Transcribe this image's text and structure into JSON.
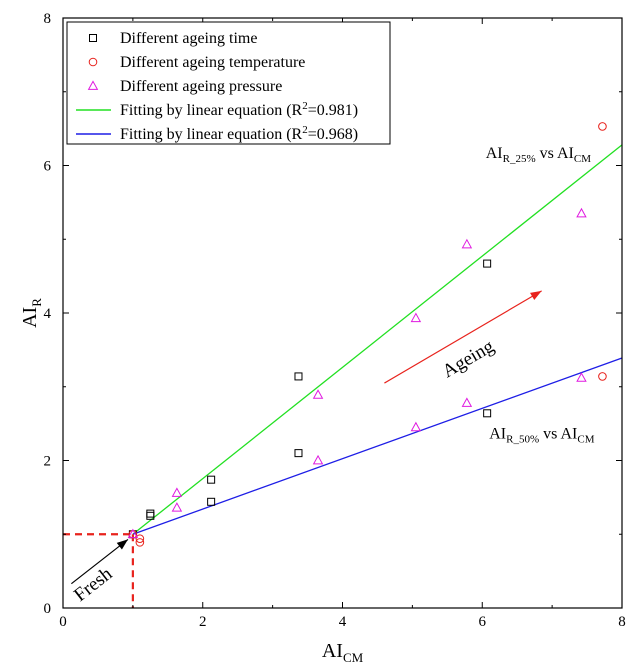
{
  "chart_data": {
    "type": "scatter",
    "xlabel": {
      "main": "AI",
      "sub": "CM"
    },
    "ylabel": {
      "main": "AI",
      "sub": "R"
    },
    "xlim": [
      0,
      8
    ],
    "ylim": [
      0,
      8
    ],
    "x_ticks": [
      "0",
      "2",
      "4",
      "6",
      "8"
    ],
    "y_ticks": [
      "0",
      "2",
      "4",
      "6",
      "8"
    ],
    "grid": false,
    "legend": {
      "placement": "top-left",
      "entries": [
        {
          "label": "Different ageing time",
          "marker": "square",
          "color": "#000000"
        },
        {
          "label": "Different ageing temperature",
          "marker": "circle",
          "color": "#e8231d"
        },
        {
          "label": "Different ageing pressure",
          "marker": "triangle",
          "color": "#e01ae0"
        },
        {
          "label_pre": "Fitting by linear equation (R",
          "label_sup": "2",
          "label_post": "=0.981)",
          "line": true,
          "color": "#22e022"
        },
        {
          "label_pre": "Fitting by linear equation (R",
          "label_sup": "2",
          "label_post": "=0.968)",
          "line": true,
          "color": "#1e1ee6"
        }
      ]
    },
    "series": [
      {
        "marker": "square",
        "color": "#000000",
        "points": [
          [
            1,
            1
          ],
          [
            1.25,
            1.28
          ],
          [
            1.25,
            1.25
          ],
          [
            2.12,
            1.74
          ],
          [
            2.12,
            1.44
          ],
          [
            3.37,
            3.14
          ],
          [
            3.37,
            2.1
          ],
          [
            6.07,
            4.67
          ],
          [
            6.07,
            2.64
          ]
        ]
      },
      {
        "marker": "circle",
        "color": "#e8231d",
        "points": [
          [
            1,
            1
          ],
          [
            1.1,
            0.94
          ],
          [
            1.1,
            0.89
          ],
          [
            7.72,
            6.53
          ],
          [
            7.72,
            3.14
          ]
        ]
      },
      {
        "marker": "triangle",
        "color": "#e01ae0",
        "points": [
          [
            1,
            1
          ],
          [
            1.63,
            1.56
          ],
          [
            1.63,
            1.36
          ],
          [
            3.65,
            2.89
          ],
          [
            3.65,
            2.0
          ],
          [
            5.05,
            3.93
          ],
          [
            5.05,
            2.45
          ],
          [
            5.78,
            4.93
          ],
          [
            5.78,
            2.78
          ],
          [
            7.42,
            5.35
          ],
          [
            7.42,
            3.12
          ]
        ]
      }
    ],
    "fit_lines": [
      {
        "color": "#22e022",
        "from": [
          1,
          1
        ],
        "to": [
          8,
          6.28
        ]
      },
      {
        "color": "#1e1ee6",
        "from": [
          1,
          1
        ],
        "to": [
          8,
          3.39
        ]
      }
    ],
    "annotations": [
      {
        "main": "AI",
        "sub": "R_25%",
        "mid": " vs AI",
        "sub2": "CM",
        "at": [
          6.05,
          6.1
        ]
      },
      {
        "main": "AI",
        "sub": "R_50%",
        "mid": " vs AI",
        "sub2": "CM",
        "at": [
          6.1,
          2.3
        ]
      },
      {
        "text": "Ageing",
        "color": "#e8231d"
      },
      {
        "text": "Fresh",
        "color": "#000000"
      }
    ],
    "ageing_arrow": {
      "from": [
        4.6,
        3.05
      ],
      "to": [
        6.85,
        4.3
      ],
      "color": "#e8231d"
    },
    "fresh_arrow": {
      "from": [
        0.12,
        0.33
      ],
      "to": [
        0.93,
        0.93
      ],
      "color": "#000000"
    },
    "fresh_box": {
      "x": 1,
      "y": 1,
      "color": "#e8231d"
    }
  }
}
